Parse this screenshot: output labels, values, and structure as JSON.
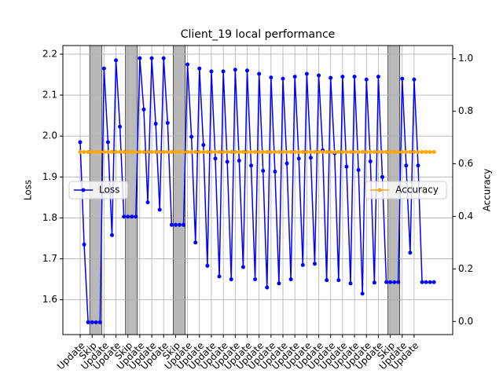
{
  "chart_data": {
    "type": "line",
    "title": "Client_19 local performance",
    "ylabel": "Loss",
    "y2label": "Accuracy",
    "x": [
      0,
      1,
      2,
      3,
      4,
      5,
      6,
      7,
      8,
      9,
      10,
      11,
      12,
      13,
      14,
      15,
      16,
      17,
      18,
      19,
      20,
      21,
      22,
      23,
      24,
      25,
      26,
      27,
      28,
      29,
      30,
      31,
      32,
      33,
      34,
      35,
      36,
      37,
      38,
      39,
      40,
      41,
      42,
      43,
      44,
      45,
      46,
      47,
      48,
      49,
      50,
      51,
      52,
      53,
      54,
      55,
      56,
      57,
      58,
      59,
      60,
      61,
      62,
      63,
      64,
      65,
      66,
      67,
      68,
      69,
      70,
      71,
      72,
      73,
      74,
      75,
      76,
      77,
      78,
      79,
      80,
      81,
      82,
      83,
      84,
      85,
      86,
      87,
      88,
      89
    ],
    "xlim": [
      -4.35,
      93.7
    ],
    "xticks": [
      {
        "value": 0,
        "label": "Update"
      },
      {
        "value": 3,
        "label": "Skip"
      },
      {
        "value": 6,
        "label": "Update"
      },
      {
        "value": 9,
        "label": "Update"
      },
      {
        "value": 12,
        "label": "Skip"
      },
      {
        "value": 15,
        "label": "Update"
      },
      {
        "value": 18,
        "label": "Update"
      },
      {
        "value": 21,
        "label": "Update"
      },
      {
        "value": 24,
        "label": "Skip"
      },
      {
        "value": 27,
        "label": "Update"
      },
      {
        "value": 30,
        "label": "Update"
      },
      {
        "value": 33,
        "label": "Update"
      },
      {
        "value": 36,
        "label": "Update"
      },
      {
        "value": 39,
        "label": "Update"
      },
      {
        "value": 42,
        "label": "Update"
      },
      {
        "value": 45,
        "label": "Update"
      },
      {
        "value": 48,
        "label": "Update"
      },
      {
        "value": 51,
        "label": "Update"
      },
      {
        "value": 54,
        "label": "Update"
      },
      {
        "value": 57,
        "label": "Update"
      },
      {
        "value": 60,
        "label": "Update"
      },
      {
        "value": 63,
        "label": "Update"
      },
      {
        "value": 66,
        "label": "Update"
      },
      {
        "value": 69,
        "label": "Update"
      },
      {
        "value": 72,
        "label": "Update"
      },
      {
        "value": 75,
        "label": "Update"
      },
      {
        "value": 78,
        "label": "Skip"
      },
      {
        "value": 81,
        "label": "Update"
      },
      {
        "value": 84,
        "label": "Update"
      }
    ],
    "ylim": [
      1.515,
      2.221
    ],
    "yticks": [
      1.6,
      1.7,
      1.8,
      1.9,
      {
        "value": 2,
        "label": "2.0"
      },
      2.1,
      2.2
    ],
    "y2lim": [
      -0.05,
      1.05
    ],
    "y2ticks": [
      {
        "value": 0,
        "label": "0.0"
      },
      0.2,
      0.4,
      0.6,
      0.8,
      {
        "value": 1,
        "label": "1.0"
      }
    ],
    "grid": true,
    "series": [
      {
        "name": "Loss",
        "color": "#0000ff",
        "legend": "center left",
        "values": [
          1.985,
          1.735,
          1.545,
          1.545,
          1.545,
          1.545,
          2.165,
          1.985,
          1.758,
          2.185,
          2.023,
          1.803,
          1.803,
          1.803,
          1.803,
          2.19,
          2.065,
          1.838,
          2.19,
          2.03,
          1.82,
          2.19,
          2.032,
          1.783,
          1.783,
          1.783,
          1.783,
          2.175,
          1.998,
          1.74,
          2.165,
          1.978,
          1.683,
          2.158,
          1.945,
          1.657,
          2.158,
          1.937,
          1.65,
          2.162,
          1.94,
          1.68,
          2.16,
          1.928,
          1.65,
          2.152,
          1.915,
          1.63,
          2.143,
          1.913,
          1.64,
          2.14,
          1.933,
          1.65,
          2.145,
          1.945,
          1.685,
          2.152,
          1.947,
          1.688,
          2.148,
          1.965,
          1.648,
          2.142,
          1.958,
          1.648,
          2.145,
          1.925,
          1.64,
          2.145,
          1.917,
          1.615,
          2.138,
          1.938,
          1.642,
          2.145,
          1.9,
          1.643,
          1.643,
          1.643,
          1.643,
          2.14,
          1.928,
          1.715,
          2.138,
          1.928,
          1.643,
          1.643,
          1.643,
          1.643
        ]
      },
      {
        "name": "Accuracy",
        "color": "#ffa500",
        "axis": "y2",
        "legend": "center right",
        "values": [
          0.645,
          0.645,
          0.645,
          0.645,
          0.645,
          0.645,
          0.645,
          0.645,
          0.645,
          0.645,
          0.645,
          0.645,
          0.645,
          0.645,
          0.645,
          0.645,
          0.645,
          0.645,
          0.645,
          0.645,
          0.645,
          0.645,
          0.645,
          0.645,
          0.645,
          0.645,
          0.645,
          0.645,
          0.645,
          0.645,
          0.645,
          0.645,
          0.645,
          0.645,
          0.645,
          0.645,
          0.645,
          0.645,
          0.645,
          0.645,
          0.645,
          0.645,
          0.645,
          0.645,
          0.645,
          0.645,
          0.645,
          0.645,
          0.645,
          0.645,
          0.645,
          0.645,
          0.645,
          0.645,
          0.645,
          0.645,
          0.645,
          0.645,
          0.645,
          0.645,
          0.645,
          0.645,
          0.645,
          0.645,
          0.645,
          0.645,
          0.645,
          0.645,
          0.645,
          0.645,
          0.645,
          0.645,
          0.645,
          0.645,
          0.645,
          0.645,
          0.645,
          0.645,
          0.645,
          0.645,
          0.645,
          0.645,
          0.645,
          0.645,
          0.645,
          0.645,
          0.645,
          0.645,
          0.645,
          0.645
        ]
      }
    ]
  }
}
